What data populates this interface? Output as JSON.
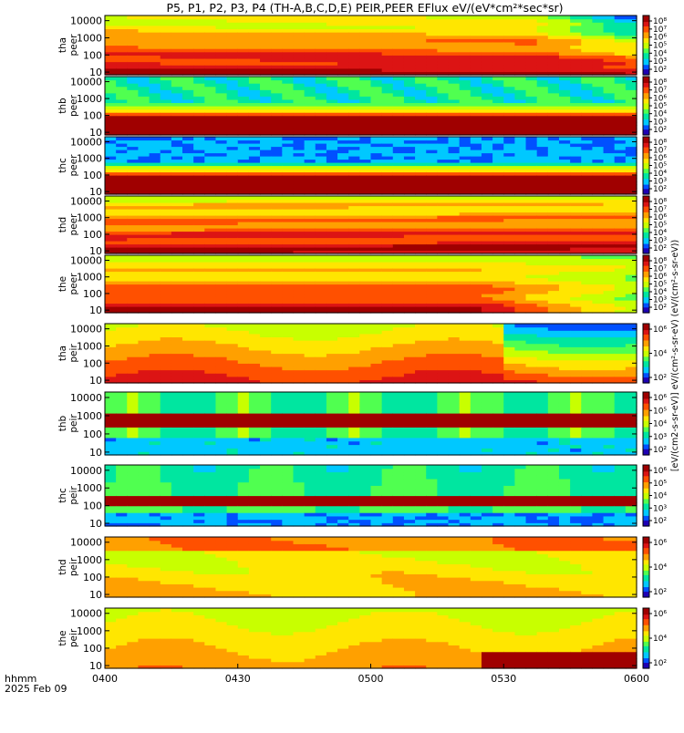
{
  "chart_data": {
    "type": "heatmap",
    "title": "P5, P1, P2, P3, P4 (TH-A,B,C,D,E) PEIR,PEER EFlux eV/(eV*cm²*sec*sr)",
    "x_time_label_line1": "hhmm",
    "x_time_label_line2": "2025 Feb 09",
    "x_ticks": [
      "0400",
      "0430",
      "0500",
      "0530",
      "0600"
    ],
    "x_range": [
      "0400",
      "0600"
    ],
    "y_scale": "log",
    "y_ticks": [
      "10",
      "100",
      "1000",
      "10000"
    ],
    "colorbar_label": "[eV/(cm2-s-sr-eV)] eV/(cm²-s-sr-eV) (eV/(cm²-s-sr-eV))",
    "panels": [
      {
        "probe": "tha",
        "species": "peer",
        "label": [
          "tha",
          "peer"
        ],
        "ylim": [
          7,
          20000
        ],
        "colorbar_ticks": [
          "10²",
          "10³",
          "10⁴",
          "10⁵",
          "10⁶",
          "10⁷",
          "10⁸"
        ]
      },
      {
        "probe": "thb",
        "species": "peer",
        "label": [
          "thb",
          "peer"
        ],
        "ylim": [
          7,
          20000
        ],
        "colorbar_ticks": [
          "10²",
          "10³",
          "10⁴",
          "10⁵",
          "10⁶",
          "10⁷",
          "10⁸"
        ]
      },
      {
        "probe": "thc",
        "species": "peer",
        "label": [
          "thc",
          "peer"
        ],
        "ylim": [
          7,
          20000
        ],
        "colorbar_ticks": [
          "10²",
          "10³",
          "10⁴",
          "10⁵",
          "10⁶",
          "10⁷",
          "10⁸"
        ]
      },
      {
        "probe": "thd",
        "species": "peer",
        "label": [
          "thd",
          "peer"
        ],
        "ylim": [
          7,
          20000
        ],
        "colorbar_ticks": [
          "10²",
          "10³",
          "10⁴",
          "10⁵",
          "10⁶",
          "10⁷",
          "10⁸"
        ]
      },
      {
        "probe": "the",
        "species": "peer",
        "label": [
          "the",
          "peer"
        ],
        "ylim": [
          7,
          20000
        ],
        "colorbar_ticks": [
          "10²",
          "10³",
          "10⁴",
          "10⁵",
          "10⁶",
          "10⁷",
          "10⁸"
        ]
      },
      {
        "probe": "tha",
        "species": "peir",
        "label": [
          "tha",
          "peir"
        ],
        "ylim": [
          7,
          20000
        ],
        "colorbar_ticks": [
          "10²",
          "10⁴",
          "10⁶"
        ]
      },
      {
        "probe": "thb",
        "species": "peir",
        "label": [
          "thb",
          "peir"
        ],
        "ylim": [
          7,
          20000
        ],
        "colorbar_ticks": [
          "10²",
          "10³",
          "10⁴",
          "10⁵",
          "10⁶"
        ]
      },
      {
        "probe": "thc",
        "species": "peir",
        "label": [
          "thc",
          "peir"
        ],
        "ylim": [
          7,
          20000
        ],
        "colorbar_ticks": [
          "10²",
          "10³",
          "10⁴",
          "10⁵",
          "10⁶"
        ]
      },
      {
        "probe": "thd",
        "species": "peir",
        "label": [
          "thd",
          "peir"
        ],
        "ylim": [
          7,
          20000
        ],
        "colorbar_ticks": [
          "10²",
          "10⁴",
          "10⁶"
        ]
      },
      {
        "probe": "the",
        "species": "peir",
        "label": [
          "the",
          "peir"
        ],
        "ylim": [
          7,
          20000
        ],
        "colorbar_ticks": [
          "10²",
          "10⁴",
          "10⁶"
        ]
      }
    ],
    "colormap": [
      "#1e00b4",
      "#0050ff",
      "#00c8ff",
      "#00e6a0",
      "#50ff50",
      "#c8ff00",
      "#ffe600",
      "#ffa000",
      "#ff5000",
      "#dc1414",
      "#a00000"
    ]
  }
}
